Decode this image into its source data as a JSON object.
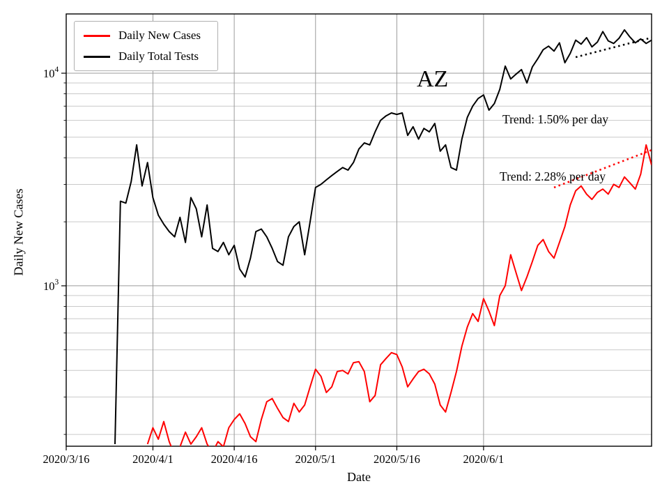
{
  "chart_data": {
    "type": "line",
    "title": "AZ",
    "xlabel": "Date",
    "ylabel": "Daily New Cases",
    "y_scale": "log",
    "grid": true,
    "legend_position": "upper left",
    "x_range": [
      "2020/3/16",
      "2020/7/2"
    ],
    "y_range": [
      176,
      19000
    ],
    "x_tick_labels": [
      "2020/3/16",
      "2020/4/1",
      "2020/4/16",
      "2020/5/1",
      "2020/5/16",
      "2020/6/1"
    ],
    "y_tick_exponents": [
      3,
      4
    ],
    "series": [
      {
        "name": "Daily New Cases",
        "color": "#ff0000",
        "dates": [
          "2020/3/31",
          "2020/4/1",
          "2020/4/2",
          "2020/4/3",
          "2020/4/4",
          "2020/4/5",
          "2020/4/6",
          "2020/4/7",
          "2020/4/8",
          "2020/4/9",
          "2020/4/10",
          "2020/4/11",
          "2020/4/12",
          "2020/4/13",
          "2020/4/14",
          "2020/4/15",
          "2020/4/16",
          "2020/4/17",
          "2020/4/18",
          "2020/4/19",
          "2020/4/20",
          "2020/4/21",
          "2020/4/22",
          "2020/4/23",
          "2020/4/24",
          "2020/4/25",
          "2020/4/26",
          "2020/4/27",
          "2020/4/28",
          "2020/4/29",
          "2020/4/30",
          "2020/5/1",
          "2020/5/2",
          "2020/5/3",
          "2020/5/4",
          "2020/5/5",
          "2020/5/6",
          "2020/5/7",
          "2020/5/8",
          "2020/5/9",
          "2020/5/10",
          "2020/5/11",
          "2020/5/12",
          "2020/5/13",
          "2020/5/14",
          "2020/5/15",
          "2020/5/16",
          "2020/5/17",
          "2020/5/18",
          "2020/5/19",
          "2020/5/20",
          "2020/5/21",
          "2020/5/22",
          "2020/5/23",
          "2020/5/24",
          "2020/5/25",
          "2020/5/26",
          "2020/5/27",
          "2020/5/28",
          "2020/5/29",
          "2020/5/30",
          "2020/5/31",
          "2020/6/1",
          "2020/6/2",
          "2020/6/3",
          "2020/6/4",
          "2020/6/5",
          "2020/6/6",
          "2020/6/7",
          "2020/6/8",
          "2020/6/9",
          "2020/6/10",
          "2020/6/11",
          "2020/6/12",
          "2020/6/13",
          "2020/6/14",
          "2020/6/15",
          "2020/6/16",
          "2020/6/17",
          "2020/6/18",
          "2020/6/19",
          "2020/6/20",
          "2020/6/21",
          "2020/6/22",
          "2020/6/23",
          "2020/6/24",
          "2020/6/25",
          "2020/6/26",
          "2020/6/27",
          "2020/6/28",
          "2020/6/29",
          "2020/6/30",
          "2020/7/1",
          "2020/7/2"
        ],
        "values": [
          180,
          215,
          190,
          230,
          185,
          160,
          175,
          205,
          180,
          195,
          215,
          180,
          165,
          185,
          175,
          215,
          235,
          250,
          225,
          195,
          185,
          235,
          285,
          295,
          265,
          240,
          230,
          280,
          255,
          275,
          335,
          405,
          375,
          315,
          335,
          395,
          400,
          385,
          435,
          440,
          395,
          285,
          305,
          425,
          455,
          485,
          475,
          415,
          335,
          365,
          395,
          405,
          385,
          345,
          275,
          255,
          315,
          395,
          520,
          640,
          740,
          680,
          870,
          760,
          650,
          900,
          1000,
          1400,
          1150,
          950,
          1100,
          1300,
          1550,
          1650,
          1450,
          1350,
          1600,
          1900,
          2400,
          2800,
          2950,
          2700,
          2550,
          2750,
          2850,
          2700,
          3000,
          2900,
          3250,
          3050,
          2850,
          3350,
          4600,
          3700
        ]
      },
      {
        "name": "Daily Total Tests",
        "color": "#000000",
        "dates": [
          "2020/3/25",
          "2020/3/26",
          "2020/3/27",
          "2020/3/28",
          "2020/3/29",
          "2020/3/30",
          "2020/3/31",
          "2020/4/1",
          "2020/4/2",
          "2020/4/3",
          "2020/4/4",
          "2020/4/5",
          "2020/4/6",
          "2020/4/7",
          "2020/4/8",
          "2020/4/9",
          "2020/4/10",
          "2020/4/11",
          "2020/4/12",
          "2020/4/13",
          "2020/4/14",
          "2020/4/15",
          "2020/4/16",
          "2020/4/17",
          "2020/4/18",
          "2020/4/19",
          "2020/4/20",
          "2020/4/21",
          "2020/4/22",
          "2020/4/23",
          "2020/4/24",
          "2020/4/25",
          "2020/4/26",
          "2020/4/27",
          "2020/4/28",
          "2020/4/29",
          "2020/4/30",
          "2020/5/1",
          "2020/5/2",
          "2020/5/3",
          "2020/5/4",
          "2020/5/5",
          "2020/5/6",
          "2020/5/7",
          "2020/5/8",
          "2020/5/9",
          "2020/5/10",
          "2020/5/11",
          "2020/5/12",
          "2020/5/13",
          "2020/5/14",
          "2020/5/15",
          "2020/5/16",
          "2020/5/17",
          "2020/5/18",
          "2020/5/19",
          "2020/5/20",
          "2020/5/21",
          "2020/5/22",
          "2020/5/23",
          "2020/5/24",
          "2020/5/25",
          "2020/5/26",
          "2020/5/27",
          "2020/5/28",
          "2020/5/29",
          "2020/5/30",
          "2020/5/31",
          "2020/6/1",
          "2020/6/2",
          "2020/6/3",
          "2020/6/4",
          "2020/6/5",
          "2020/6/6",
          "2020/6/7",
          "2020/6/8",
          "2020/6/9",
          "2020/6/10",
          "2020/6/11",
          "2020/6/12",
          "2020/6/13",
          "2020/6/14",
          "2020/6/15",
          "2020/6/16",
          "2020/6/17",
          "2020/6/18",
          "2020/6/19",
          "2020/6/20",
          "2020/6/21",
          "2020/6/22",
          "2020/6/23",
          "2020/6/24",
          "2020/6/25",
          "2020/6/26",
          "2020/6/27",
          "2020/6/28",
          "2020/6/29",
          "2020/6/30",
          "2020/7/1",
          "2020/7/2"
        ],
        "values": [
          180,
          2500,
          2450,
          3100,
          4600,
          2950,
          3800,
          2600,
          2150,
          1950,
          1800,
          1700,
          2100,
          1600,
          2600,
          2300,
          1700,
          2400,
          1500,
          1450,
          1600,
          1400,
          1550,
          1200,
          1100,
          1350,
          1800,
          1850,
          1700,
          1500,
          1300,
          1250,
          1700,
          1900,
          2000,
          1400,
          2000,
          2900,
          3000,
          3150,
          3300,
          3450,
          3600,
          3500,
          3800,
          4400,
          4700,
          4600,
          5300,
          6000,
          6300,
          6500,
          6400,
          6500,
          5100,
          5600,
          4900,
          5500,
          5300,
          5800,
          4300,
          4600,
          3600,
          3500,
          4900,
          6200,
          7000,
          7600,
          7900,
          6700,
          7200,
          8400,
          10800,
          9400,
          9900,
          10400,
          9000,
          10700,
          11700,
          12900,
          13400,
          12700,
          13900,
          11200,
          12400,
          14300,
          13700,
          14700,
          13300,
          14000,
          15700,
          14200,
          13800,
          14600,
          16000,
          14800,
          13900,
          14500,
          13800,
          14300
        ]
      }
    ],
    "trend_lines": [
      {
        "name": "Trend: 2.28% per day",
        "rate_percent_per_day": 2.28,
        "color": "#ff0000",
        "start_date": "2020/6/14",
        "start_value": 2900,
        "end_date": "2020/7/2",
        "end_value": 4350
      },
      {
        "name": "Trend: 1.50% per day",
        "rate_percent_per_day": 1.5,
        "color": "#000000",
        "start_date": "2020/6/18",
        "start_value": 11900,
        "end_date": "2020/7/2",
        "end_value": 14700
      }
    ]
  }
}
